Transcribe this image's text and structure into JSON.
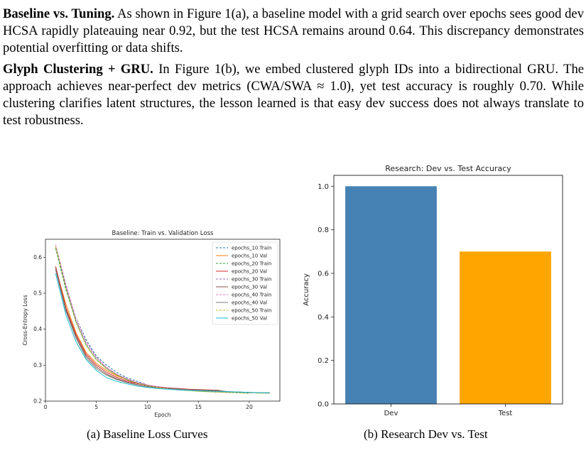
{
  "paragraphs": [
    {
      "heading": "Baseline vs. Tuning.",
      "text": "As shown in Figure 1(a), a baseline model with a grid search over epochs sees good dev HCSA rapidly plateauing near 0.92, but the test HCSA remains around 0.64. This discrepancy demonstrates potential overfitting or data shifts."
    },
    {
      "heading": "Glyph Clustering + GRU.",
      "text": "In Figure 1(b), we embed clustered glyph IDs into a bidirectional GRU. The approach achieves near-perfect dev metrics (CWA/SWA ≈ 1.0), yet test accuracy is roughly 0.70. While clustering clarifies latent structures, the lesson learned is that easy dev success does not always translate to test robustness."
    }
  ],
  "captions": {
    "a": "(a)  Baseline Loss Curves",
    "b": "(b)  Research Dev vs. Test"
  },
  "chart_data": [
    {
      "type": "line",
      "title": "Baseline: Train vs. Validation Loss",
      "xlabel": "Epoch",
      "ylabel": "Cross-Entropy Loss",
      "xlim": [
        0,
        23
      ],
      "ylim": [
        0.2,
        0.65
      ],
      "xticks": [
        0,
        5,
        10,
        15,
        20
      ],
      "yticks": [
        0.2,
        0.3,
        0.4,
        0.5,
        0.6
      ],
      "legend": "top-right",
      "series": [
        {
          "name": "epochs_10 Train",
          "color": "#1f77b4",
          "dash": true,
          "x": [
            1,
            2,
            3,
            4,
            5,
            6,
            7,
            8,
            9,
            10
          ],
          "y": [
            0.625,
            0.52,
            0.43,
            0.37,
            0.325,
            0.3,
            0.28,
            0.265,
            0.255,
            0.245
          ]
        },
        {
          "name": "epochs_10 Val",
          "color": "#ff7f0e",
          "dash": false,
          "x": [
            1,
            2,
            3,
            4,
            5,
            6,
            7,
            8,
            9,
            10
          ],
          "y": [
            0.57,
            0.47,
            0.39,
            0.335,
            0.305,
            0.285,
            0.27,
            0.26,
            0.25,
            0.245
          ]
        },
        {
          "name": "epochs_20 Train",
          "color": "#2ca02c",
          "dash": true,
          "x": [
            1,
            2,
            3,
            4,
            5,
            6,
            7,
            8,
            9,
            10,
            11,
            12,
            13,
            14,
            15,
            16,
            17,
            18,
            19,
            20
          ],
          "y": [
            0.625,
            0.51,
            0.42,
            0.355,
            0.315,
            0.29,
            0.273,
            0.26,
            0.25,
            0.243,
            0.238,
            0.235,
            0.232,
            0.23,
            0.228,
            0.226,
            0.225,
            0.224,
            0.223,
            0.222
          ]
        },
        {
          "name": "epochs_20 Val",
          "color": "#d62728",
          "dash": false,
          "x": [
            1,
            2,
            3,
            4,
            5,
            6,
            7,
            8,
            9,
            10,
            11,
            12,
            13,
            14,
            15,
            16,
            17,
            18
          ],
          "y": [
            0.575,
            0.46,
            0.385,
            0.33,
            0.3,
            0.28,
            0.266,
            0.256,
            0.249,
            0.244,
            0.24,
            0.237,
            0.235,
            0.233,
            0.232,
            0.231,
            0.23,
            0.224
          ]
        },
        {
          "name": "epochs_30 Train",
          "color": "#9467bd",
          "dash": true,
          "x": [
            1,
            2,
            3,
            4,
            5,
            6,
            7,
            8,
            9,
            10,
            11,
            12,
            13,
            14,
            15,
            16,
            17,
            18,
            19,
            20,
            21,
            22
          ],
          "y": [
            0.63,
            0.52,
            0.425,
            0.36,
            0.32,
            0.292,
            0.274,
            0.261,
            0.251,
            0.244,
            0.239,
            0.235,
            0.232,
            0.23,
            0.228,
            0.227,
            0.226,
            0.225,
            0.224,
            0.223,
            0.223,
            0.222
          ]
        },
        {
          "name": "epochs_30 Val",
          "color": "#8c564b",
          "dash": false,
          "x": [
            1,
            2,
            3,
            4,
            5,
            6,
            7,
            8,
            9,
            10,
            11,
            12,
            13,
            14,
            15,
            16,
            17,
            18,
            19,
            20,
            21,
            22
          ],
          "y": [
            0.57,
            0.455,
            0.38,
            0.325,
            0.295,
            0.275,
            0.262,
            0.253,
            0.246,
            0.241,
            0.238,
            0.236,
            0.234,
            0.232,
            0.231,
            0.23,
            0.229,
            0.226,
            0.225,
            0.224,
            0.223,
            0.223
          ]
        },
        {
          "name": "epochs_40 Train",
          "color": "#e377c2",
          "dash": true,
          "x": [
            1,
            2,
            3,
            4,
            5,
            6,
            7,
            8,
            9,
            10,
            11,
            12,
            13,
            14,
            15,
            16,
            17,
            18,
            19,
            20,
            21,
            22
          ],
          "y": [
            0.635,
            0.525,
            0.43,
            0.365,
            0.322,
            0.294,
            0.275,
            0.262,
            0.252,
            0.245,
            0.24,
            0.236,
            0.233,
            0.231,
            0.229,
            0.227,
            0.226,
            0.225,
            0.224,
            0.223,
            0.223,
            0.222
          ]
        },
        {
          "name": "epochs_40 Val",
          "color": "#7f7f7f",
          "dash": false,
          "x": [
            1,
            2,
            3,
            4,
            5,
            6,
            7,
            8,
            9,
            10,
            11,
            12,
            13,
            14,
            15,
            16,
            17,
            18,
            19,
            20,
            21,
            22
          ],
          "y": [
            0.565,
            0.45,
            0.375,
            0.32,
            0.29,
            0.272,
            0.26,
            0.251,
            0.245,
            0.24,
            0.237,
            0.235,
            0.233,
            0.231,
            0.23,
            0.229,
            0.228,
            0.226,
            0.225,
            0.224,
            0.223,
            0.223
          ]
        },
        {
          "name": "epochs_50 Train",
          "color": "#bcbd22",
          "dash": true,
          "x": [
            1,
            2,
            3,
            4,
            5,
            6,
            7,
            8,
            9,
            10,
            11,
            12,
            13,
            14,
            15,
            16,
            17,
            18,
            19,
            20,
            21,
            22
          ],
          "y": [
            0.63,
            0.515,
            0.42,
            0.355,
            0.315,
            0.29,
            0.272,
            0.259,
            0.25,
            0.243,
            0.238,
            0.234,
            0.231,
            0.229,
            0.227,
            0.226,
            0.225,
            0.224,
            0.223,
            0.223,
            0.222,
            0.222
          ]
        },
        {
          "name": "epochs_50 Val",
          "color": "#17becf",
          "dash": false,
          "x": [
            1,
            2,
            3,
            4,
            5,
            6,
            7,
            8,
            9,
            10,
            11,
            12,
            13,
            14,
            15,
            16,
            17,
            18,
            19,
            20,
            21,
            22
          ],
          "y": [
            0.555,
            0.44,
            0.365,
            0.315,
            0.285,
            0.265,
            0.255,
            0.248,
            0.242,
            0.238,
            0.235,
            0.233,
            0.231,
            0.23,
            0.229,
            0.228,
            0.227,
            0.226,
            0.225,
            0.224,
            0.223,
            0.223
          ]
        }
      ]
    },
    {
      "type": "bar",
      "title": "Research: Dev vs. Test Accuracy",
      "xlabel": "",
      "ylabel": "Accuracy",
      "categories": [
        "Dev",
        "Test"
      ],
      "values": [
        1.0,
        0.7
      ],
      "colors": [
        "#4682b4",
        "#ffa500"
      ],
      "ylim": [
        0,
        1.05
      ],
      "yticks": [
        0.0,
        0.2,
        0.4,
        0.6,
        0.8,
        1.0
      ]
    }
  ]
}
